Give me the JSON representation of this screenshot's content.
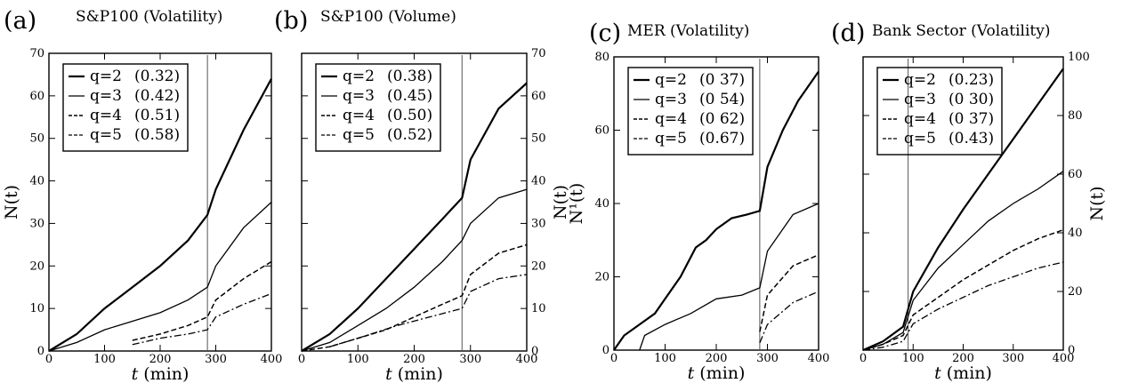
{
  "chart_data": [
    {
      "type": "line",
      "panel": "(a)",
      "title": "S&P100  (Volatility)",
      "xlabel_italic": "t",
      "xlabel_rest": " (min)",
      "ylabel": "N(t)",
      "ylabel_side": "left",
      "xlim": [
        0,
        400
      ],
      "ylim": [
        0,
        70
      ],
      "xticks": [
        0,
        100,
        200,
        300,
        400
      ],
      "yticks": [
        0,
        10,
        20,
        30,
        40,
        50,
        60,
        70
      ],
      "vline_x": 285,
      "legend": [
        {
          "label": "q=2",
          "exponent": "(0.32)"
        },
        {
          "label": "q=3",
          "exponent": "(0.42)"
        },
        {
          "label": "q=4",
          "exponent": "(0.51)"
        },
        {
          "label": "q=5",
          "exponent": "(0.58)"
        }
      ],
      "series": [
        {
          "name": "q=2",
          "x": [
            0,
            50,
            100,
            150,
            200,
            250,
            285,
            300,
            350,
            400
          ],
          "y": [
            0,
            4,
            10,
            15,
            20,
            26,
            32,
            38,
            52,
            64
          ]
        },
        {
          "name": "q=3",
          "x": [
            0,
            50,
            100,
            150,
            200,
            250,
            285,
            300,
            350,
            400
          ],
          "y": [
            0,
            2,
            5,
            7,
            9,
            12,
            15,
            20,
            29,
            35
          ]
        },
        {
          "name": "q=4",
          "x": [
            150,
            200,
            250,
            285,
            300,
            350,
            400
          ],
          "y": [
            2.5,
            4,
            6,
            8,
            12,
            17,
            21
          ]
        },
        {
          "name": "q=5",
          "x": [
            150,
            200,
            250,
            285,
            300,
            350,
            400
          ],
          "y": [
            1.5,
            3,
            4,
            5,
            8,
            11,
            13.5
          ]
        }
      ]
    },
    {
      "type": "line",
      "panel": "(b)",
      "title": "S&P100 (Volume)",
      "xlabel_italic": "t",
      "xlabel_rest": " (min)",
      "ylabel": "N(t)",
      "ylabel_side": "right",
      "xlim": [
        0,
        400
      ],
      "ylim": [
        0,
        70
      ],
      "xticks": [
        0,
        100,
        200,
        300,
        400
      ],
      "yticks": [
        0,
        10,
        20,
        30,
        40,
        50,
        60,
        70
      ],
      "vline_x": 285,
      "legend": [
        {
          "label": "q=2",
          "exponent": "(0.38)"
        },
        {
          "label": "q=3",
          "exponent": "(0.45)"
        },
        {
          "label": "q=4",
          "exponent": "(0.50)"
        },
        {
          "label": "q=5",
          "exponent": "(0.52)"
        }
      ],
      "series": [
        {
          "name": "q=2",
          "x": [
            0,
            50,
            100,
            150,
            200,
            250,
            285,
            300,
            350,
            400
          ],
          "y": [
            0,
            4,
            10,
            17,
            24,
            31,
            36,
            45,
            57,
            63
          ]
        },
        {
          "name": "q=3",
          "x": [
            0,
            50,
            100,
            150,
            200,
            250,
            285,
            300,
            350,
            400
          ],
          "y": [
            0,
            2,
            6,
            10,
            15,
            21,
            26,
            30,
            36,
            38
          ]
        },
        {
          "name": "q=4",
          "x": [
            0,
            50,
            100,
            150,
            200,
            250,
            285,
            300,
            350,
            400
          ],
          "y": [
            0,
            1,
            3,
            5,
            8,
            11,
            13,
            18,
            23,
            25
          ]
        },
        {
          "name": "q=5",
          "x": [
            50,
            100,
            170,
            285,
            300,
            350,
            400
          ],
          "y": [
            1,
            3,
            6,
            10,
            14,
            17,
            18
          ]
        }
      ]
    },
    {
      "type": "line",
      "panel": "(c)",
      "title": "MER (Volatility)",
      "xlabel_italic": "t",
      "xlabel_rest": " (min)",
      "ylabel": "N¹(t)",
      "ylabel_side": "left",
      "xlim": [
        0,
        400
      ],
      "ylim": [
        0,
        80
      ],
      "xticks": [
        0,
        100,
        200,
        300,
        400
      ],
      "yticks": [
        0,
        20,
        40,
        60,
        80
      ],
      "vline_x": 285,
      "legend": [
        {
          "label": "q=2",
          "exponent": "(0 37)"
        },
        {
          "label": "q=3",
          "exponent": "(0 54)"
        },
        {
          "label": "q=4",
          "exponent": "(0 62)"
        },
        {
          "label": "q=5",
          "exponent": "(0.67)"
        }
      ],
      "series": [
        {
          "name": "q=2",
          "x": [
            0,
            20,
            50,
            80,
            100,
            130,
            160,
            180,
            200,
            230,
            260,
            285,
            300,
            330,
            360,
            400
          ],
          "y": [
            0,
            4,
            7,
            10,
            14,
            20,
            28,
            30,
            33,
            36,
            37,
            38,
            50,
            60,
            68,
            76
          ]
        },
        {
          "name": "q=3",
          "x": [
            50,
            60,
            100,
            150,
            200,
            250,
            285,
            300,
            350,
            400
          ],
          "y": [
            0,
            4,
            7,
            10,
            14,
            15,
            17,
            27,
            37,
            40
          ]
        },
        {
          "name": "q=4",
          "x": [
            285,
            300,
            350,
            400
          ],
          "y": [
            5,
            15,
            23,
            26
          ]
        },
        {
          "name": "q=5",
          "x": [
            285,
            300,
            350,
            400
          ],
          "y": [
            2,
            7,
            13,
            16
          ]
        }
      ]
    },
    {
      "type": "line",
      "panel": "(d)",
      "title": "Bank Sector (Volatility)",
      "xlabel_italic": "t",
      "xlabel_rest": " (min)",
      "ylabel": "N(t)",
      "ylabel_side": "right",
      "xlim": [
        0,
        400
      ],
      "ylim": [
        0,
        100
      ],
      "xticks": [
        0,
        100,
        200,
        300,
        400
      ],
      "yticks": [
        0,
        20,
        40,
        60,
        80,
        100
      ],
      "vline_x": 90,
      "legend": [
        {
          "label": "q=2",
          "exponent": "(0.23)"
        },
        {
          "label": "q=3",
          "exponent": "(0 30)"
        },
        {
          "label": "q=4",
          "exponent": "(0 37)"
        },
        {
          "label": "q=5",
          "exponent": "(0.43)"
        }
      ],
      "series": [
        {
          "name": "q=2",
          "x": [
            0,
            40,
            80,
            100,
            150,
            200,
            250,
            300,
            350,
            400
          ],
          "y": [
            0,
            3,
            8,
            20,
            35,
            48,
            60,
            72,
            84,
            96
          ]
        },
        {
          "name": "q=3",
          "x": [
            0,
            40,
            80,
            100,
            150,
            200,
            250,
            300,
            350,
            400
          ],
          "y": [
            0,
            2,
            6,
            17,
            28,
            36,
            44,
            50,
            55,
            61
          ]
        },
        {
          "name": "q=4",
          "x": [
            0,
            40,
            80,
            100,
            150,
            200,
            250,
            300,
            350,
            400
          ],
          "y": [
            0,
            2,
            5,
            12,
            18,
            24,
            29,
            34,
            38,
            41
          ]
        },
        {
          "name": "q=5",
          "x": [
            0,
            40,
            80,
            100,
            150,
            200,
            250,
            300,
            350,
            400
          ],
          "y": [
            0,
            1,
            3,
            9,
            14,
            18,
            22,
            25,
            28,
            30
          ]
        }
      ]
    }
  ]
}
